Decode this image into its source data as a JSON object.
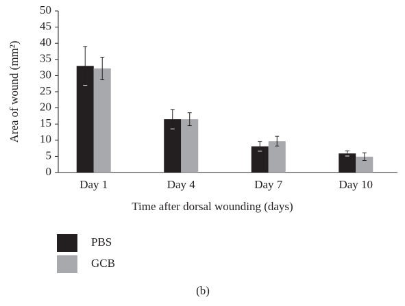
{
  "chart_data": {
    "type": "bar",
    "caption": "(b)",
    "x_label": "Time after dorsal wounding (days)",
    "y_label": "Area of wound (mm²)",
    "categories": [
      "Day 1",
      "Day 4",
      "Day 7",
      "Day 10"
    ],
    "series": [
      {
        "name": "PBS",
        "color": "#231f20",
        "values": [
          33.0,
          16.5,
          8.1,
          5.9
        ],
        "errors": [
          6.0,
          3.0,
          1.5,
          0.8
        ]
      },
      {
        "name": "GCB",
        "color": "#a7a9ac",
        "values": [
          32.2,
          16.5,
          9.7,
          4.9
        ],
        "errors": [
          3.5,
          2.0,
          1.5,
          1.2
        ]
      }
    ],
    "ylim": [
      0,
      50
    ],
    "yticks": [
      0,
      5,
      10,
      15,
      20,
      25,
      30,
      35,
      40,
      45,
      50
    ],
    "grid": false,
    "legend": "bottom"
  }
}
